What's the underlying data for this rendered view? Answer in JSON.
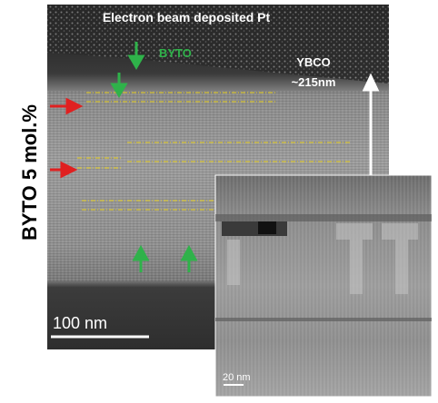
{
  "label": "BYTO 5 mol.%",
  "annotations": {
    "top": "Electron beam deposited Pt",
    "layer": "BYTO",
    "substrate": "YBCO",
    "thickness": "~215nm"
  },
  "scale_bars": {
    "main": "100 nm",
    "inset": "20 nm"
  }
}
